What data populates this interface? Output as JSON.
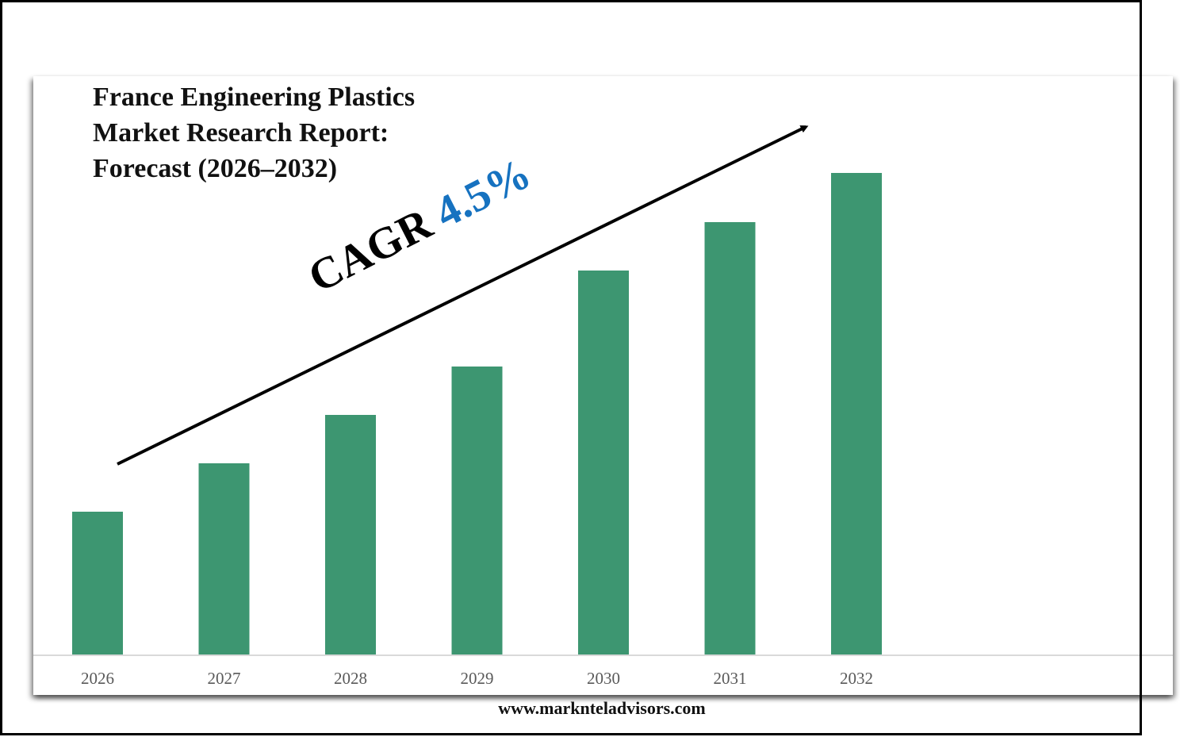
{
  "chart_data": {
    "type": "bar",
    "title": "France Engineering Plastics Market Research Report: Forecast (2026–2032)",
    "title_lines": [
      "France Engineering Plastics",
      "Market Research Report:",
      "Forecast (2026–2032)"
    ],
    "categories": [
      "2026",
      "2027",
      "2028",
      "2029",
      "2030",
      "2031",
      "2032"
    ],
    "values": [
      181,
      242,
      303,
      364,
      485,
      546,
      608
    ],
    "value_units": "relative (no axis values shown)",
    "ylim": [
      0,
      700
    ],
    "xlabel": "",
    "ylabel": "",
    "grid": false,
    "legend": "none",
    "annotation": {
      "label": "CAGR",
      "value": "4.5%",
      "style": "trend-arrow"
    },
    "colors": {
      "bar": "#3d9671",
      "cagr_value": "#1672c0",
      "tick_text": "#595959",
      "baseline": "#d9d9d9"
    }
  },
  "footer": {
    "source": "www.marknteladvisors.com"
  }
}
